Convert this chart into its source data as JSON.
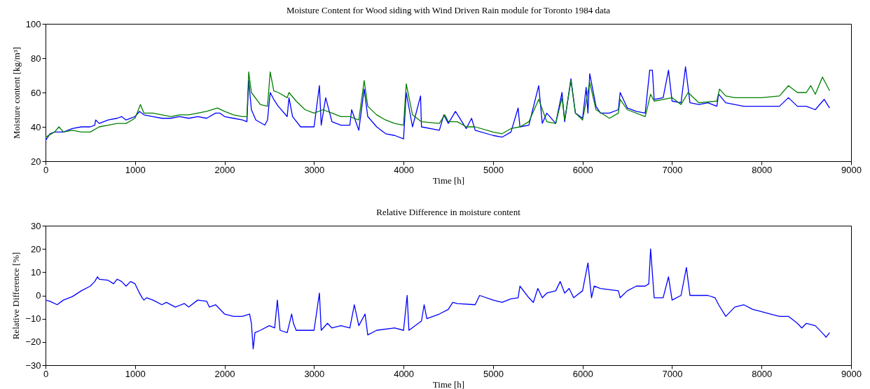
{
  "chart_data": [
    {
      "type": "line",
      "title": "Moisture Content for Wood siding with Wind Driven Rain module for Toronto 1984 data",
      "xlabel": "Time [h]",
      "ylabel": "Moisture content [kg/m³]",
      "xlim": [
        0,
        9000
      ],
      "xticks": [
        0,
        1000,
        2000,
        3000,
        4000,
        5000,
        6000,
        7000,
        8000,
        9000
      ],
      "ylim": [
        20,
        100
      ],
      "yticks": [
        20,
        40,
        60,
        80,
        100
      ],
      "grid": false,
      "series": [
        {
          "color": "#0000ff",
          "x": [
            0,
            50,
            100,
            200,
            300,
            400,
            500,
            550,
            560,
            600,
            700,
            800,
            850,
            900,
            1000,
            1050,
            1100,
            1200,
            1300,
            1400,
            1500,
            1600,
            1700,
            1800,
            1900,
            1950,
            2000,
            2100,
            2200,
            2250,
            2270,
            2300,
            2350,
            2450,
            2480,
            2510,
            2550,
            2600,
            2700,
            2720,
            2760,
            2850,
            3000,
            3060,
            3080,
            3130,
            3200,
            3300,
            3400,
            3420,
            3500,
            3560,
            3600,
            3700,
            3800,
            3900,
            4000,
            4030,
            4100,
            4190,
            4200,
            4400,
            4450,
            4500,
            4580,
            4700,
            4760,
            4800,
            5000,
            5100,
            5200,
            5280,
            5300,
            5400,
            5510,
            5550,
            5600,
            5700,
            5770,
            5800,
            5870,
            5920,
            6000,
            6040,
            6060,
            6080,
            6150,
            6200,
            6300,
            6400,
            6420,
            6500,
            6600,
            6700,
            6750,
            6780,
            6800,
            6900,
            6960,
            7000,
            7100,
            7150,
            7200,
            7300,
            7400,
            7500,
            7520,
            7600,
            7800,
            8000,
            8200,
            8300,
            8400,
            8500,
            8600,
            8700,
            8760
          ],
          "values": [
            32,
            36,
            37,
            37,
            39,
            40,
            40,
            41,
            44,
            42,
            44,
            45,
            46,
            44,
            46,
            49,
            47,
            46,
            45,
            45,
            46,
            45,
            46,
            45,
            48,
            48,
            46,
            45,
            44,
            43,
            67,
            50,
            44,
            41,
            44,
            60,
            56,
            52,
            46,
            57,
            46,
            40,
            40,
            64,
            41,
            57,
            43,
            41,
            41,
            50,
            38,
            62,
            46,
            40,
            36,
            35,
            33,
            60,
            40,
            58,
            40,
            38,
            47,
            42,
            49,
            39,
            45,
            38,
            35,
            34,
            37,
            51,
            40,
            41,
            64,
            42,
            48,
            42,
            60,
            43,
            68,
            48,
            45,
            63,
            48,
            71,
            52,
            48,
            48,
            50,
            60,
            51,
            49,
            48,
            73,
            73,
            56,
            57,
            73,
            55,
            54,
            75,
            54,
            53,
            54,
            52,
            59,
            54,
            52,
            52,
            52,
            57,
            52,
            52,
            50,
            56,
            51
          ]
        },
        {
          "color": "#007f00",
          "x": [
            0,
            100,
            150,
            200,
            300,
            400,
            500,
            600,
            700,
            800,
            900,
            1000,
            1060,
            1100,
            1200,
            1300,
            1400,
            1500,
            1600,
            1700,
            1800,
            1920,
            2000,
            2100,
            2200,
            2250,
            2270,
            2300,
            2400,
            2480,
            2510,
            2550,
            2600,
            2700,
            2720,
            2800,
            2900,
            3000,
            3100,
            3200,
            3300,
            3400,
            3500,
            3560,
            3600,
            3700,
            3800,
            3900,
            4000,
            4030,
            4100,
            4200,
            4400,
            4460,
            4500,
            4600,
            4700,
            4800,
            5000,
            5100,
            5200,
            5300,
            5400,
            5510,
            5600,
            5700,
            5770,
            5800,
            5870,
            5920,
            6000,
            6080,
            6150,
            6300,
            6400,
            6420,
            6500,
            6700,
            6760,
            6800,
            6900,
            7000,
            7100,
            7180,
            7300,
            7500,
            7530,
            7600,
            7700,
            8000,
            8200,
            8300,
            8400,
            8500,
            8550,
            8600,
            8680,
            8760
          ],
          "values": [
            34,
            37,
            40,
            37,
            38,
            37,
            37,
            40,
            41,
            42,
            42,
            45,
            53,
            48,
            48,
            47,
            46,
            47,
            47,
            48,
            49,
            51,
            49,
            47,
            46,
            46,
            72,
            60,
            53,
            52,
            72,
            61,
            60,
            57,
            60,
            55,
            50,
            48,
            50,
            48,
            46,
            46,
            44,
            67,
            52,
            47,
            44,
            42,
            41,
            65,
            47,
            43,
            42,
            47,
            43,
            43,
            40,
            40,
            37,
            36,
            39,
            40,
            43,
            56,
            43,
            42,
            57,
            44,
            67,
            48,
            44,
            66,
            50,
            45,
            48,
            56,
            50,
            46,
            59,
            55,
            56,
            57,
            53,
            60,
            54,
            55,
            62,
            58,
            57,
            57,
            58,
            64,
            60,
            60,
            64,
            59,
            69,
            61
          ]
        }
      ]
    },
    {
      "type": "line",
      "title": "Relative Difference in moisture content",
      "xlabel": "Time [h]",
      "ylabel": "Relative Difference [%]",
      "xlim": [
        0,
        9000
      ],
      "xticks": [
        0,
        1000,
        2000,
        3000,
        4000,
        5000,
        6000,
        7000,
        8000,
        9000
      ],
      "ylim": [
        -30,
        30
      ],
      "yticks": [
        -30,
        -20,
        -10,
        0,
        10,
        20,
        30
      ],
      "grid": false,
      "series": [
        {
          "color": "#0000ff",
          "x": [
            0,
            50,
            130,
            200,
            300,
            400,
            500,
            550,
            580,
            600,
            700,
            760,
            800,
            850,
            900,
            950,
            1000,
            1050,
            1080,
            1100,
            1130,
            1200,
            1300,
            1350,
            1450,
            1550,
            1600,
            1700,
            1800,
            1830,
            1900,
            2000,
            2100,
            2200,
            2280,
            2300,
            2320,
            2340,
            2400,
            2500,
            2560,
            2590,
            2620,
            2700,
            2750,
            2770,
            2800,
            3000,
            3060,
            3080,
            3150,
            3200,
            3300,
            3400,
            3450,
            3500,
            3570,
            3600,
            3700,
            3900,
            4000,
            4040,
            4060,
            4200,
            4230,
            4260,
            4400,
            4500,
            4550,
            4600,
            4800,
            4850,
            5000,
            5100,
            5200,
            5280,
            5300,
            5400,
            5450,
            5500,
            5550,
            5600,
            5700,
            5750,
            5800,
            5850,
            5900,
            6000,
            6060,
            6100,
            6130,
            6200,
            6400,
            6420,
            6500,
            6600,
            6700,
            6740,
            6760,
            6800,
            6900,
            6960,
            7000,
            7100,
            7160,
            7200,
            7400,
            7480,
            7520,
            7600,
            7700,
            7800,
            7900,
            8000,
            8100,
            8200,
            8300,
            8400,
            8450,
            8500,
            8600,
            8700,
            8720,
            8760
          ],
          "values": [
            -2,
            -2.5,
            -4,
            -2,
            -0.5,
            2,
            4,
            6,
            8,
            7,
            6.5,
            5,
            7,
            6,
            4,
            6,
            5,
            1,
            -1,
            -2,
            -1,
            -2,
            -4,
            -3,
            -5,
            -3.5,
            -5,
            -2,
            -2.5,
            -5,
            -4,
            -8,
            -9,
            -9,
            -8,
            -12,
            -23,
            -16,
            -15,
            -13,
            -14,
            -2,
            -15,
            -16,
            -8,
            -12,
            -15,
            -15,
            1,
            -15,
            -12,
            -14,
            -13,
            -14,
            -4,
            -13,
            -8,
            -17,
            -15,
            -14,
            -15,
            0,
            -15,
            -11,
            -4,
            -10,
            -8,
            -6,
            -3,
            -3.5,
            -4,
            0,
            -2,
            -3,
            -1.5,
            -1,
            4,
            -1,
            -3,
            3,
            -1,
            1,
            2,
            6,
            1,
            3,
            -1,
            2,
            14,
            -1,
            4,
            3,
            2,
            -1,
            2,
            4,
            4,
            5,
            20,
            -1,
            -1,
            8,
            -2,
            0,
            12,
            0,
            0,
            -1,
            -4,
            -9,
            -5,
            -4,
            -6,
            -7,
            -8,
            -9,
            -9,
            -12,
            -14,
            -12,
            -13,
            -17,
            -18,
            -16
          ]
        }
      ]
    }
  ]
}
